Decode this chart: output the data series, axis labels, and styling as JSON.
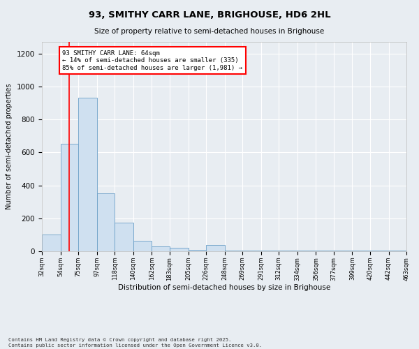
{
  "title": "93, SMITHY CARR LANE, BRIGHOUSE, HD6 2HL",
  "subtitle": "Size of property relative to semi-detached houses in Brighouse",
  "xlabel": "Distribution of semi-detached houses by size in Brighouse",
  "ylabel": "Number of semi-detached properties",
  "bar_color": "#cfe0f0",
  "bar_edge_color": "#6ca0c8",
  "property_line_x": 64,
  "property_line_color": "red",
  "annotation_text": "93 SMITHY CARR LANE: 64sqm\n← 14% of semi-detached houses are smaller (335)\n85% of semi-detached houses are larger (1,981) →",
  "annotation_box_color": "white",
  "annotation_box_edge": "red",
  "footnote": "Contains HM Land Registry data © Crown copyright and database right 2025.\nContains public sector information licensed under the Open Government Licence v3.0.",
  "bin_edges": [
    32,
    54,
    75,
    97,
    118,
    140,
    162,
    183,
    205,
    226,
    248,
    269,
    291,
    312,
    334,
    356,
    377,
    399,
    420,
    442,
    463
  ],
  "bin_labels": [
    "32sqm",
    "54sqm",
    "75sqm",
    "97sqm",
    "118sqm",
    "140sqm",
    "162sqm",
    "183sqm",
    "205sqm",
    "226sqm",
    "248sqm",
    "269sqm",
    "291sqm",
    "312sqm",
    "334sqm",
    "356sqm",
    "377sqm",
    "399sqm",
    "420sqm",
    "442sqm",
    "463sqm"
  ],
  "bar_heights": [
    100,
    650,
    930,
    350,
    175,
    65,
    30,
    20,
    10,
    40,
    5,
    5,
    5,
    5,
    3,
    3,
    3,
    3,
    3,
    3
  ],
  "ylim": [
    0,
    1270
  ],
  "yticks": [
    0,
    200,
    400,
    600,
    800,
    1000,
    1200
  ],
  "background_color": "#e8edf2",
  "plot_background": "#e8edf2",
  "grid_color": "white",
  "figsize": [
    6.0,
    5.0
  ],
  "dpi": 100
}
